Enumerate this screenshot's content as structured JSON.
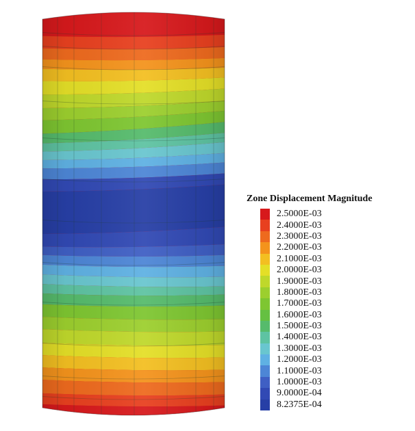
{
  "legend": {
    "title": "Zone Displacement Magnitude",
    "entries": [
      {
        "label": "2.5000E-03",
        "color": "#d7191c"
      },
      {
        "label": "2.4000E-03",
        "color": "#e8401f"
      },
      {
        "label": "2.3000E-03",
        "color": "#ee6a1e"
      },
      {
        "label": "2.2000E-03",
        "color": "#f4931c"
      },
      {
        "label": "2.1000E-03",
        "color": "#f3bf21"
      },
      {
        "label": "2.0000E-03",
        "color": "#e4df27"
      },
      {
        "label": "1.9000E-03",
        "color": "#bfd82b"
      },
      {
        "label": "1.8000E-03",
        "color": "#9ccf2e"
      },
      {
        "label": "1.7000E-03",
        "color": "#7ec631"
      },
      {
        "label": "1.6000E-03",
        "color": "#65c042"
      },
      {
        "label": "1.5000E-03",
        "color": "#56bb6c"
      },
      {
        "label": "1.4000E-03",
        "color": "#5ec3a2"
      },
      {
        "label": "1.3000E-03",
        "color": "#69c6cf"
      },
      {
        "label": "1.2000E-03",
        "color": "#5fb1e3"
      },
      {
        "label": "1.1000E-03",
        "color": "#4d86d6"
      },
      {
        "label": "1.0000E-03",
        "color": "#3f5fc4"
      },
      {
        "label": "9.0000E-04",
        "color": "#3149b4"
      },
      {
        "label": "8.2375E-04",
        "color": "#273fa6"
      }
    ]
  }
}
